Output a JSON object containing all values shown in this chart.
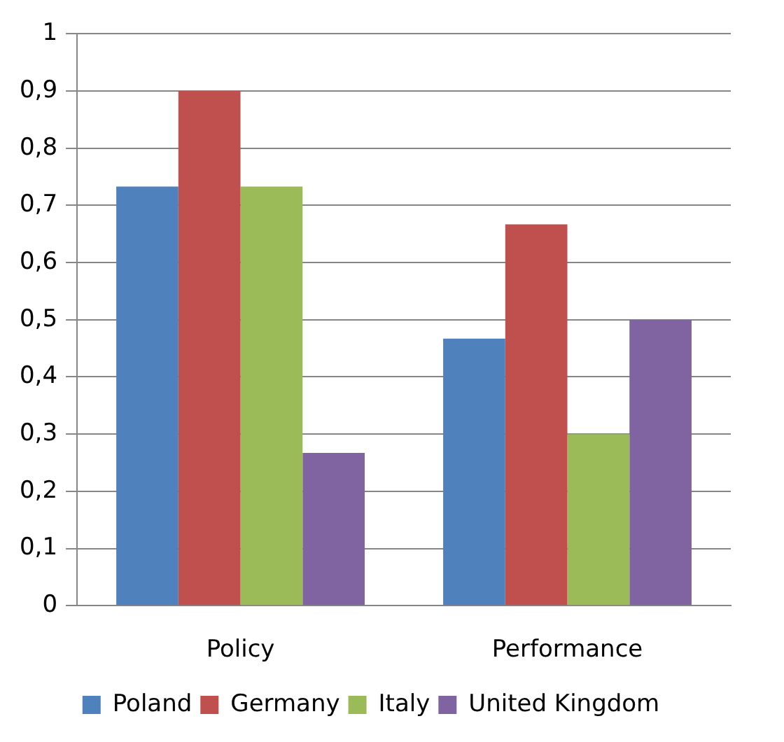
{
  "chart_data": {
    "type": "bar",
    "categories": [
      "Policy",
      "Performance"
    ],
    "series": [
      {
        "name": "Poland",
        "color": "#4f81bd",
        "values": [
          0.733,
          0.467
        ]
      },
      {
        "name": "Germany",
        "color": "#c0504d",
        "values": [
          0.9,
          0.667
        ]
      },
      {
        "name": "Italy",
        "color": "#9bbb59",
        "values": [
          0.733,
          0.3
        ]
      },
      {
        "name": "United Kingdom",
        "color": "#8064a2",
        "values": [
          0.267,
          0.5
        ]
      }
    ],
    "ylim": [
      0,
      1
    ],
    "yticks": [
      {
        "value": 0,
        "label": "0"
      },
      {
        "value": 0.1,
        "label": "0,1"
      },
      {
        "value": 0.2,
        "label": "0,2"
      },
      {
        "value": 0.3,
        "label": "0,3"
      },
      {
        "value": 0.4,
        "label": "0,4"
      },
      {
        "value": 0.5,
        "label": "0,5"
      },
      {
        "value": 0.6,
        "label": "0,6"
      },
      {
        "value": 0.7,
        "label": "0,7"
      },
      {
        "value": 0.8,
        "label": "0,8"
      },
      {
        "value": 0.9,
        "label": "0,9"
      },
      {
        "value": 1,
        "label": "1"
      }
    ],
    "grid": "y",
    "legend": "bottom"
  }
}
